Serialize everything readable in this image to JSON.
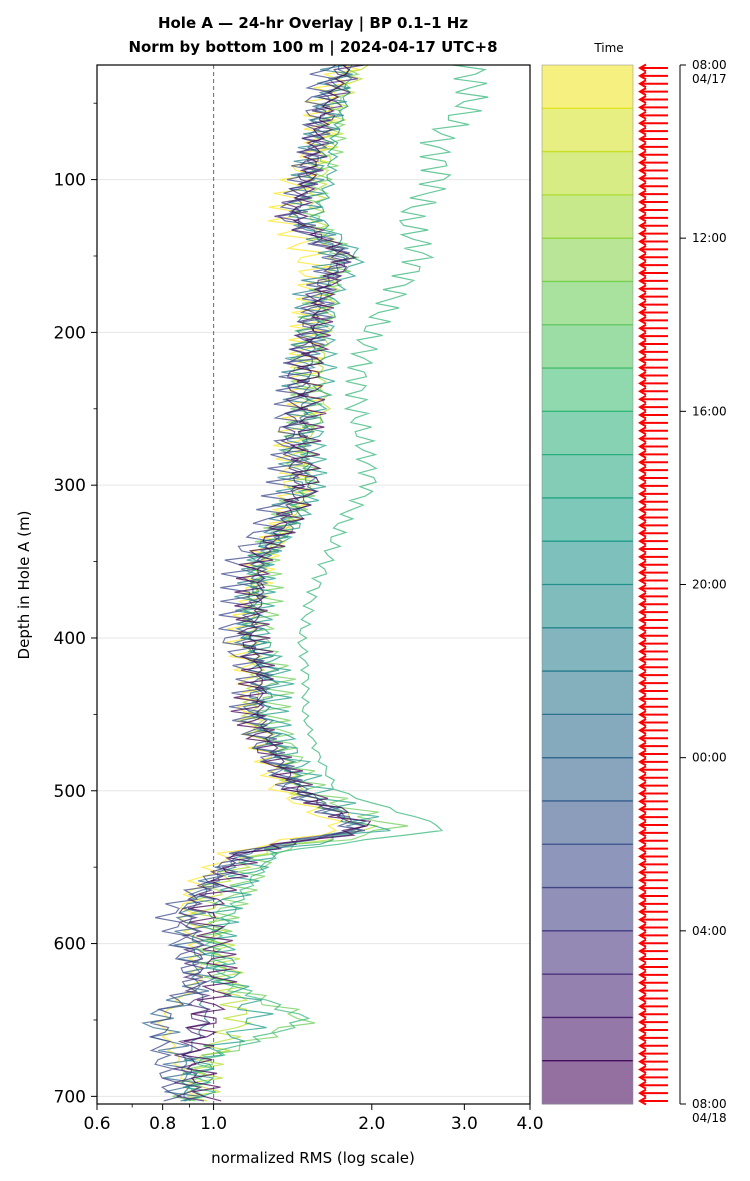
{
  "chart_data": {
    "type": "line",
    "title_line1": "Hole A — 24-hr Overlay  |  BP 0.1–1 Hz",
    "title_line2": "Norm by bottom 100 m  |  2024-04-17 UTC+8",
    "xlabel": "normalized RMS  (log scale)",
    "ylabel": "Depth in Hole A (m)",
    "x_scale": "log",
    "xlim": [
      0.6,
      4.0
    ],
    "ylim": [
      705,
      25
    ],
    "x_ticks": [
      0.6,
      0.8,
      1.0,
      2.0,
      3.0,
      4.0
    ],
    "x_tick_labels": [
      "0.6",
      "0.8",
      "1.0",
      "2.0",
      "3.0",
      "4.0"
    ],
    "y_ticks": [
      100,
      200,
      300,
      400,
      500,
      600,
      700
    ],
    "y_tick_labels": [
      "100",
      "200",
      "300",
      "400",
      "500",
      "600",
      "700"
    ],
    "reference_line_x": 1.0,
    "grid": "horizontal major only",
    "colormap": "viridis",
    "series_depths": [
      25,
      50,
      75,
      100,
      125,
      150,
      175,
      200,
      225,
      250,
      275,
      300,
      325,
      350,
      375,
      400,
      425,
      450,
      475,
      500,
      525,
      540,
      560,
      580,
      600,
      625,
      650,
      675,
      700
    ],
    "series": [
      {
        "time": "08:00",
        "color": "#fde725",
        "values": [
          1.75,
          1.6,
          1.6,
          1.45,
          1.4,
          1.55,
          1.6,
          1.55,
          1.5,
          1.5,
          1.4,
          1.4,
          1.35,
          1.2,
          1.15,
          1.1,
          1.15,
          1.15,
          1.25,
          1.35,
          1.8,
          1.1,
          0.95,
          0.9,
          0.95,
          0.95,
          0.8,
          0.85,
          0.9
        ]
      },
      {
        "time": "10:00",
        "color": "#b5de2b",
        "values": [
          1.95,
          1.75,
          1.7,
          1.6,
          1.55,
          1.7,
          1.65,
          1.6,
          1.55,
          1.6,
          1.45,
          1.5,
          1.4,
          1.25,
          1.2,
          1.2,
          1.25,
          1.2,
          1.35,
          1.45,
          2.0,
          1.2,
          1.0,
          0.95,
          1.0,
          1.05,
          1.1,
          0.95,
          0.95
        ]
      },
      {
        "time": "12:00",
        "color": "#6ece58",
        "values": [
          1.8,
          1.65,
          1.65,
          1.55,
          1.5,
          1.75,
          1.6,
          1.55,
          1.5,
          1.55,
          1.5,
          1.5,
          1.4,
          1.25,
          1.25,
          1.2,
          1.3,
          1.25,
          1.35,
          1.5,
          2.2,
          1.25,
          1.15,
          1.05,
          1.0,
          1.05,
          1.55,
          1.0,
          0.9
        ]
      },
      {
        "time": "14:00",
        "color": "#35b779",
        "values": [
          3.1,
          3.1,
          2.7,
          2.75,
          2.4,
          2.55,
          2.25,
          2.0,
          1.9,
          1.85,
          1.9,
          1.95,
          1.7,
          1.6,
          1.5,
          1.45,
          1.5,
          1.5,
          1.6,
          1.75,
          2.9,
          1.35,
          1.2,
          1.1,
          1.0,
          1.05,
          1.5,
          0.95,
          0.9
        ]
      },
      {
        "time": "16:00",
        "color": "#1f9e89",
        "values": [
          1.85,
          1.8,
          1.7,
          1.65,
          1.55,
          1.85,
          1.65,
          1.6,
          1.6,
          1.55,
          1.55,
          1.55,
          1.45,
          1.25,
          1.25,
          1.25,
          1.35,
          1.3,
          1.4,
          1.55,
          2.05,
          1.25,
          1.1,
          1.0,
          1.0,
          1.05,
          1.2,
          0.95,
          0.95
        ]
      },
      {
        "time": "18:00",
        "color": "#26828e",
        "values": [
          1.7,
          1.6,
          1.55,
          1.5,
          1.45,
          1.75,
          1.55,
          1.55,
          1.5,
          1.5,
          1.45,
          1.45,
          1.35,
          1.2,
          1.15,
          1.15,
          1.25,
          1.2,
          1.3,
          1.45,
          1.9,
          1.15,
          1.0,
          0.9,
          0.95,
          0.95,
          1.0,
          0.9,
          0.9
        ]
      },
      {
        "time": "20:00",
        "color": "#31688e",
        "values": [
          1.8,
          1.65,
          1.6,
          1.55,
          1.45,
          1.8,
          1.6,
          1.55,
          1.5,
          1.45,
          1.45,
          1.5,
          1.4,
          1.2,
          1.2,
          1.15,
          1.25,
          1.2,
          1.3,
          1.45,
          2.0,
          1.2,
          1.0,
          0.9,
          0.9,
          0.95,
          0.75,
          0.85,
          0.85
        ]
      },
      {
        "time": "22:00",
        "color": "#3e4a89",
        "values": [
          1.65,
          1.55,
          1.55,
          1.45,
          1.35,
          1.7,
          1.55,
          1.5,
          1.45,
          1.4,
          1.4,
          1.4,
          1.3,
          1.15,
          1.15,
          1.1,
          1.2,
          1.15,
          1.25,
          1.4,
          1.85,
          1.1,
          0.95,
          0.8,
          0.85,
          0.9,
          0.8,
          0.8,
          0.85
        ]
      },
      {
        "time": "00:00",
        "color": "#482878",
        "values": [
          1.75,
          1.65,
          1.55,
          1.5,
          1.4,
          1.8,
          1.6,
          1.55,
          1.45,
          1.45,
          1.4,
          1.45,
          1.35,
          1.2,
          1.2,
          1.15,
          1.2,
          1.2,
          1.3,
          1.45,
          1.95,
          1.15,
          1.0,
          0.9,
          0.95,
          0.95,
          0.95,
          0.9,
          0.9
        ]
      },
      {
        "time": "04:00",
        "color": "#440154",
        "values": [
          1.85,
          1.7,
          1.6,
          1.55,
          1.45,
          1.8,
          1.6,
          1.55,
          1.5,
          1.5,
          1.45,
          1.5,
          1.35,
          1.2,
          1.2,
          1.2,
          1.25,
          1.2,
          1.3,
          1.5,
          2.0,
          1.15,
          1.05,
          0.95,
          1.0,
          1.0,
          0.95,
          0.9,
          0.95
        ]
      }
    ],
    "colorbar_label": "Time",
    "colorbar_levels": 24,
    "colorbar_tick_labels": [
      "08:00\n04/17",
      "12:00",
      "16:00",
      "20:00",
      "00:00",
      "04:00",
      "08:00\n04/18"
    ],
    "colorbar_tick_hours": [
      0,
      4,
      8,
      12,
      16,
      20,
      24
    ],
    "arrow_color": "#ff0000",
    "arrow_count": 132
  }
}
